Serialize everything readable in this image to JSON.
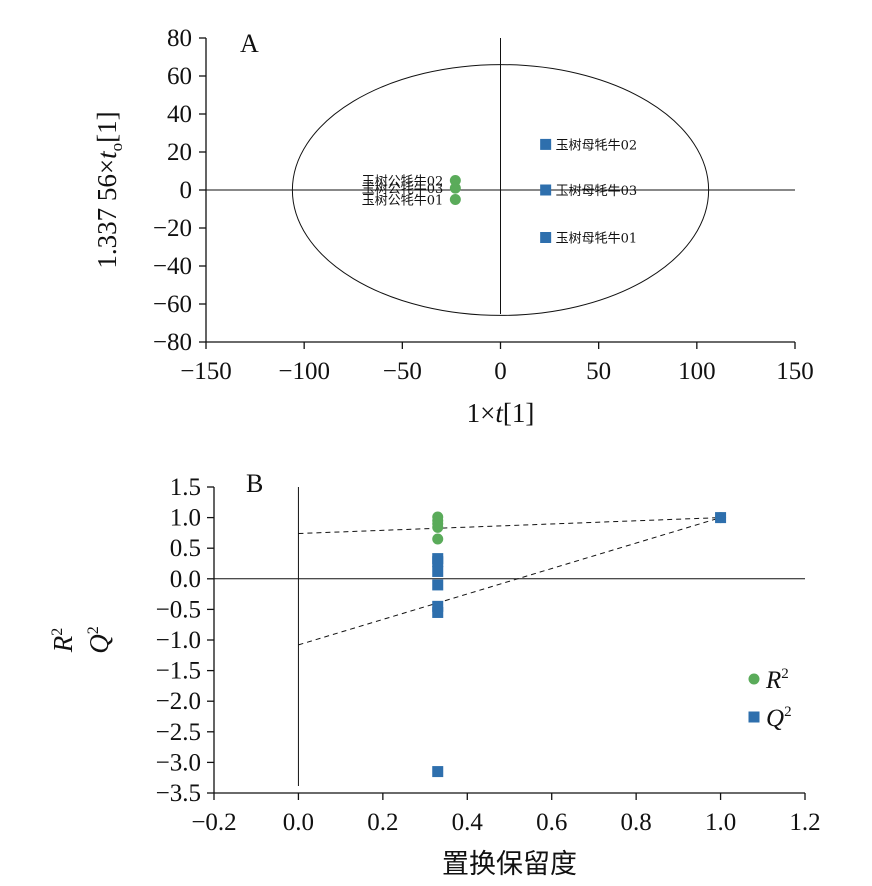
{
  "chart_data": [
    {
      "type": "scatter",
      "panel_label": "A",
      "xlabel_parts": [
        "1×",
        "t",
        "[1]"
      ],
      "ylabel_parts": [
        "1.337 56×",
        "t",
        "o",
        "[1]"
      ],
      "xlim": [
        -150,
        150
      ],
      "ylim": [
        -80,
        80
      ],
      "x_ticks": [
        -150,
        -100,
        -50,
        0,
        50,
        100,
        150
      ],
      "x_tick_labels": [
        "−150",
        "−100",
        "−50",
        "0",
        "50",
        "100",
        "150"
      ],
      "y_ticks": [
        80,
        60,
        40,
        20,
        0,
        -20,
        -40,
        -60,
        -80
      ],
      "y_tick_labels": [
        "80",
        "60",
        "40",
        "20",
        "0",
        "−20",
        "−40",
        "−60",
        "−80"
      ],
      "ellipse": {
        "cx": 0,
        "cy": 0,
        "rx": 106,
        "ry": 66
      },
      "groups": [
        {
          "marker": "circle",
          "color": "#5aab5a",
          "points": [
            {
              "label": "玉树公牦牛02",
              "x": -23,
              "y": 5
            },
            {
              "label": "玉树公牦牛03",
              "x": -23,
              "y": 1
            },
            {
              "label": "玉树公牦牛01",
              "x": -23,
              "y": -5
            }
          ]
        },
        {
          "marker": "square",
          "color": "#2e6fad",
          "points": [
            {
              "label": "玉树母牦牛02",
              "x": 23,
              "y": 24
            },
            {
              "label": "玉树母牦牛03",
              "x": 23,
              "y": 0
            },
            {
              "label": "玉树母牦牛01",
              "x": 23,
              "y": -25
            }
          ]
        }
      ]
    },
    {
      "type": "scatter",
      "panel_label": "B",
      "xlabel": "置换保留度",
      "ylabel_lines": [
        {
          "base": "R",
          "sup": "2"
        },
        {
          "base": "Q",
          "sup": "2"
        }
      ],
      "xlim": [
        -0.2,
        1.2
      ],
      "ylim": [
        -3.5,
        1.5
      ],
      "x_ticks": [
        -0.2,
        0,
        0.2,
        0.4,
        0.6,
        0.8,
        1.0,
        1.2
      ],
      "x_tick_labels": [
        "−0.2",
        "0.0",
        "0.2",
        "0.4",
        "0.6",
        "0.8",
        "1.0",
        "1.2"
      ],
      "y_ticks": [
        1.5,
        1.0,
        0.5,
        0.0,
        -0.5,
        -1.0,
        -1.5,
        -2.0,
        -2.5,
        -3.0,
        -3.5
      ],
      "y_tick_labels": [
        "1.5",
        "1.0",
        "0.5",
        "0.0",
        "−0.5",
        "−1.0",
        "−1.5",
        "−2.0",
        "−2.5",
        "−3.0",
        "−3.5"
      ],
      "series": [
        {
          "name_base": "R",
          "name_sup": "2",
          "marker": "circle",
          "color": "#5aab5a",
          "points": [
            [
              0.33,
              1.01
            ],
            [
              0.33,
              0.95
            ],
            [
              0.33,
              0.9
            ],
            [
              0.33,
              0.84
            ],
            [
              0.33,
              0.65
            ],
            [
              1.0,
              1.0
            ]
          ]
        },
        {
          "name_base": "Q",
          "name_sup": "2",
          "marker": "square",
          "color": "#2e6fad",
          "points": [
            [
              0.33,
              0.33
            ],
            [
              0.33,
              0.28
            ],
            [
              0.33,
              0.12
            ],
            [
              0.33,
              -0.1
            ],
            [
              0.33,
              -0.45
            ],
            [
              0.33,
              -0.55
            ],
            [
              0.33,
              -3.15
            ],
            [
              1.0,
              1.0
            ]
          ]
        }
      ],
      "trend_lines": [
        {
          "x": [
            0,
            1.0
          ],
          "y": [
            0.74,
            1.0
          ]
        },
        {
          "x": [
            0,
            1.0
          ],
          "y": [
            -1.08,
            1.0
          ]
        }
      ]
    }
  ]
}
